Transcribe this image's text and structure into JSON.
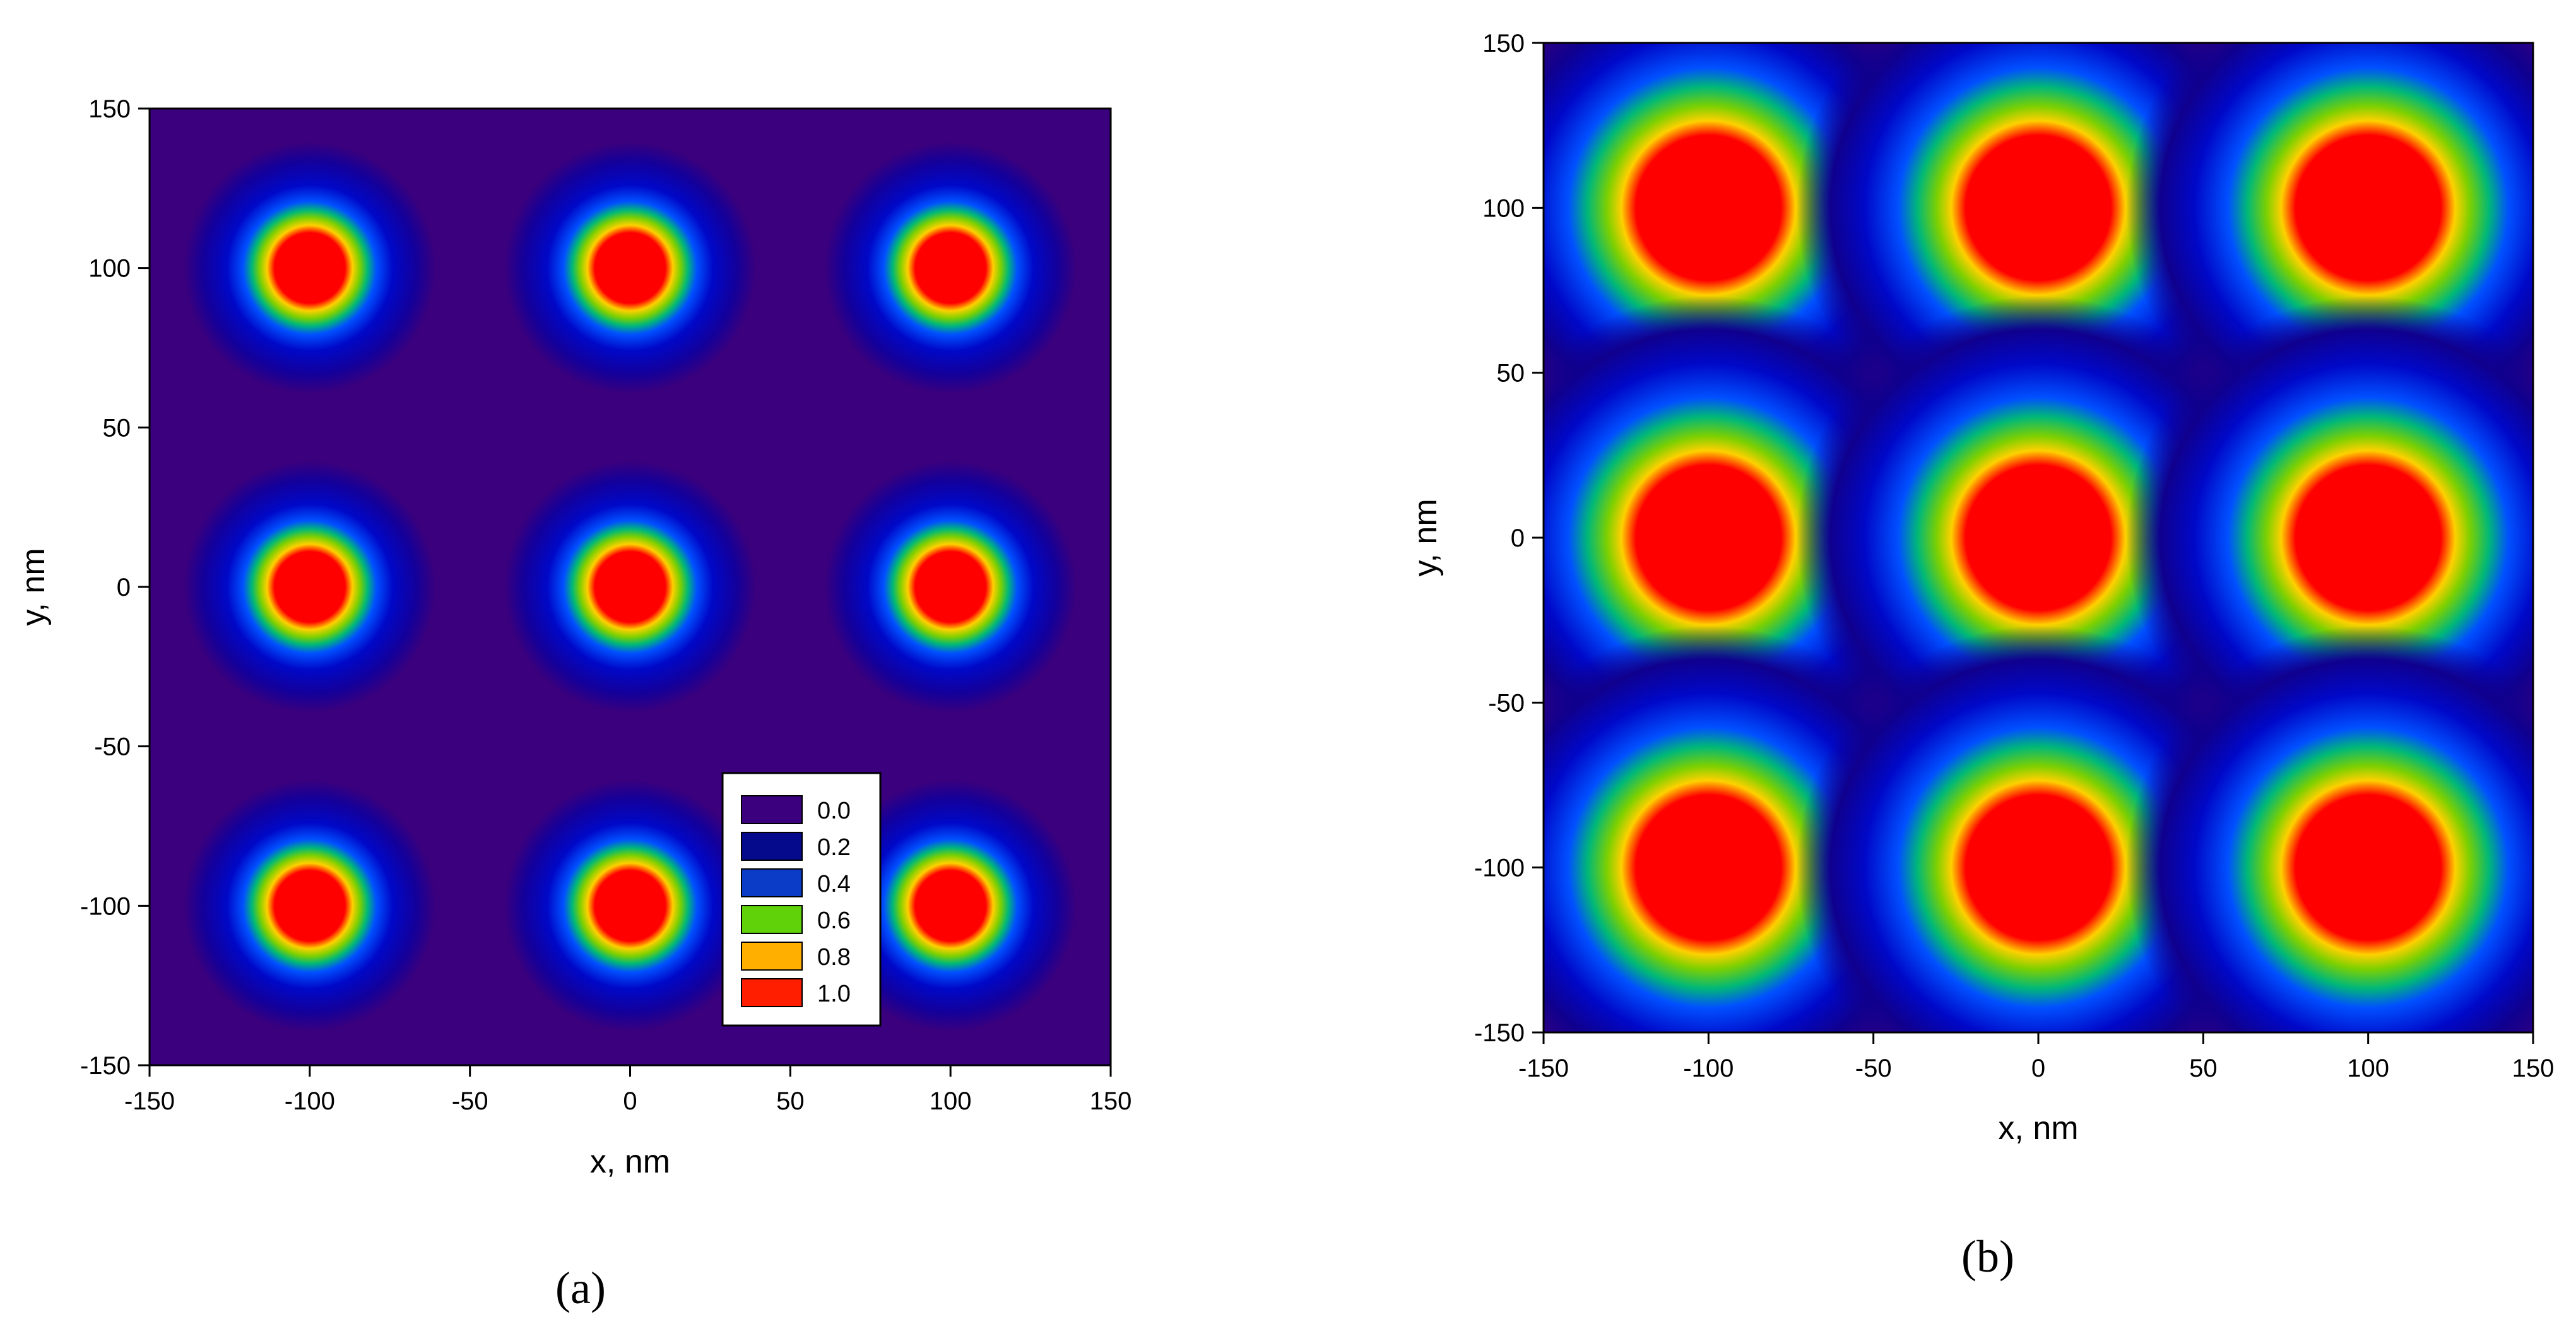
{
  "chart_data": [
    {
      "type": "heatmap",
      "panel_label": "(a)",
      "xlabel": "x, nm",
      "ylabel": "y, nm",
      "xlim": [
        -150,
        150
      ],
      "ylim": [
        -150,
        150
      ],
      "xticks": [
        -150,
        -100,
        -50,
        0,
        50,
        100,
        150
      ],
      "yticks": [
        -150,
        -100,
        -50,
        0,
        50,
        100,
        150
      ],
      "centers": [
        [
          -100,
          100
        ],
        [
          0,
          100
        ],
        [
          100,
          100
        ],
        [
          -100,
          0
        ],
        [
          0,
          0
        ],
        [
          100,
          0
        ],
        [
          -100,
          -100
        ],
        [
          0,
          -100
        ],
        [
          100,
          -100
        ]
      ],
      "spot_radius": 11,
      "halo_radius": 30,
      "background_color": "#3a007d",
      "legend": {
        "placement": "bottom-right",
        "items": [
          {
            "label": "0.0",
            "color": "#3a007d"
          },
          {
            "label": "0.2",
            "color": "#050a8c"
          },
          {
            "label": "0.4",
            "color": "#0a3cc8"
          },
          {
            "label": "0.6",
            "color": "#5fd20a"
          },
          {
            "label": "0.8",
            "color": "#ffaf00"
          },
          {
            "label": "1.0",
            "color": "#ff1e00"
          }
        ]
      },
      "grid": false
    },
    {
      "type": "heatmap",
      "panel_label": "(b)",
      "xlabel": "x, nm",
      "ylabel": "y, nm",
      "xlim": [
        -150,
        150
      ],
      "ylim": [
        -150,
        150
      ],
      "xticks": [
        -150,
        -100,
        -50,
        0,
        50,
        100,
        150
      ],
      "yticks": [
        -150,
        -100,
        -50,
        0,
        50,
        100,
        150
      ],
      "centers": [
        [
          -100,
          100
        ],
        [
          0,
          100
        ],
        [
          100,
          100
        ],
        [
          -100,
          0
        ],
        [
          0,
          0
        ],
        [
          100,
          0
        ],
        [
          -100,
          -100
        ],
        [
          0,
          -100
        ],
        [
          100,
          -100
        ]
      ],
      "spot_radius": 22,
      "halo_radius": 50,
      "background_color": "#330080",
      "grid": false
    }
  ]
}
